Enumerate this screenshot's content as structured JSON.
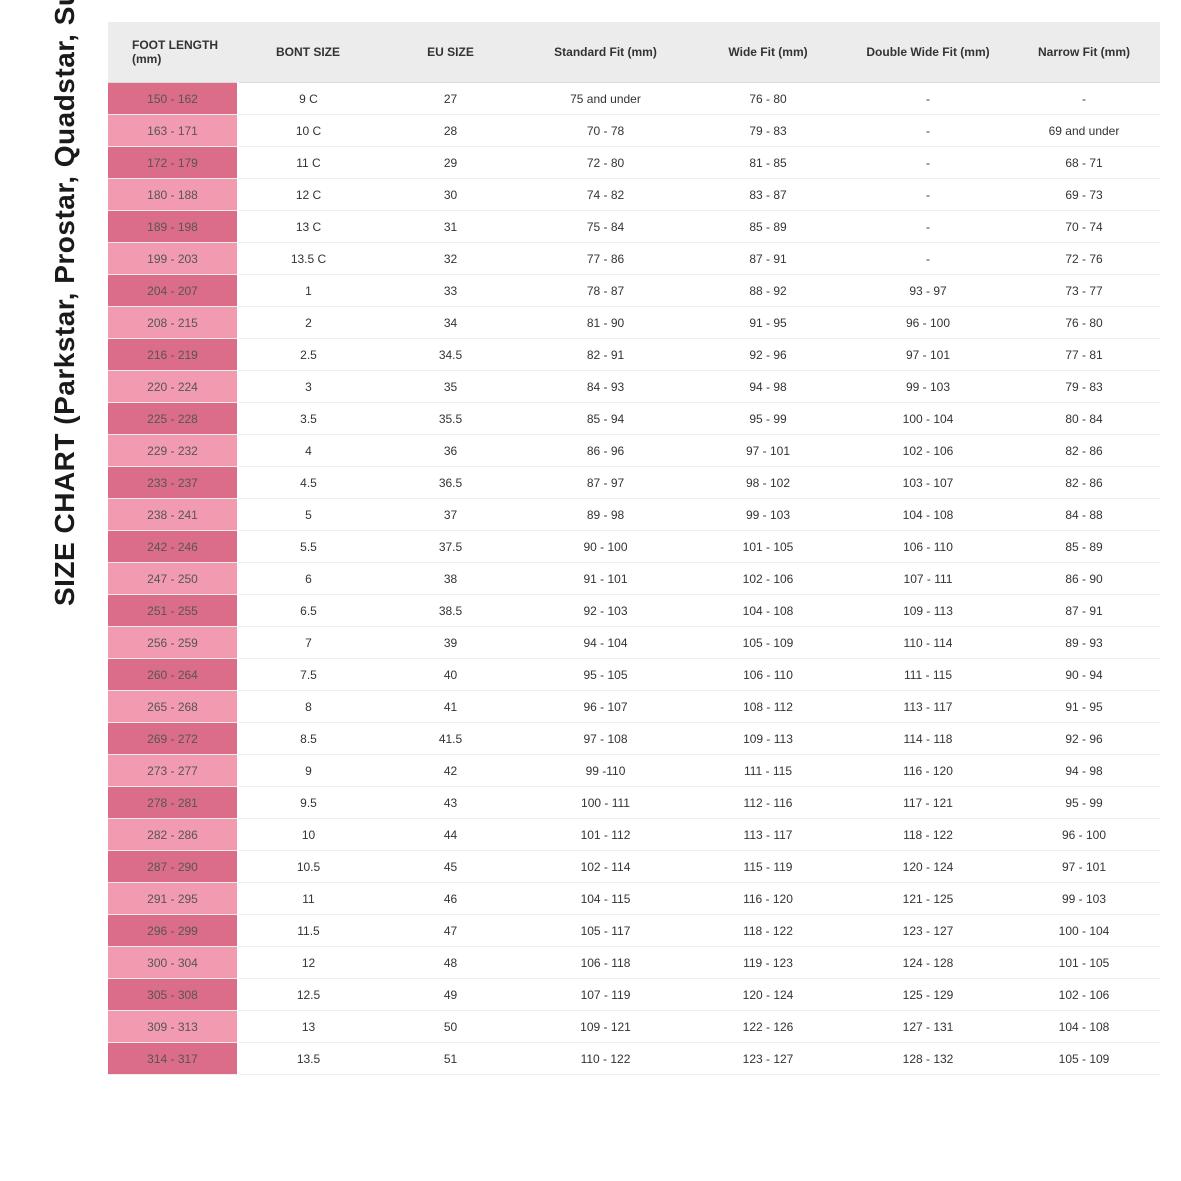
{
  "title": "SIZE CHART (Parkstar, Prostar, Quadstar, Super B)",
  "table": {
    "header_bg": "#ececec",
    "colors": {
      "dark_pink": "#dc6d88",
      "light_pink": "#f29aaf",
      "border": "#eeeeee",
      "text": "#333333"
    },
    "columns": [
      "FOOT LENGTH (mm)",
      "BONT SIZE",
      "EU SIZE",
      "Standard Fit (mm)",
      "Wide Fit (mm)",
      "Double Wide Fit (mm)",
      "Narrow Fit (mm)"
    ],
    "rows": [
      [
        "150 - 162",
        "9 C",
        "27",
        "75 and under",
        "76 - 80",
        "-",
        "-"
      ],
      [
        "163 - 171",
        "10 C",
        "28",
        "70 - 78",
        "79 - 83",
        "-",
        "69 and under"
      ],
      [
        "172 - 179",
        "11 C",
        "29",
        "72 - 80",
        "81 - 85",
        "-",
        "68 - 71"
      ],
      [
        "180 - 188",
        "12 C",
        "30",
        "74 - 82",
        "83 - 87",
        "-",
        "69 - 73"
      ],
      [
        "189 - 198",
        "13 C",
        "31",
        "75 - 84",
        "85 - 89",
        "-",
        "70 - 74"
      ],
      [
        "199 - 203",
        "13.5 C",
        "32",
        "77 - 86",
        "87 - 91",
        "-",
        "72 - 76"
      ],
      [
        "204 - 207",
        "1",
        "33",
        "78 - 87",
        "88 - 92",
        "93 - 97",
        "73 - 77"
      ],
      [
        "208 - 215",
        "2",
        "34",
        "81 - 90",
        "91 - 95",
        "96 - 100",
        "76 - 80"
      ],
      [
        "216 - 219",
        "2.5",
        "34.5",
        "82 - 91",
        "92 - 96",
        "97 - 101",
        "77 - 81"
      ],
      [
        "220 - 224",
        "3",
        "35",
        "84 - 93",
        "94 - 98",
        "99 - 103",
        "79 - 83"
      ],
      [
        "225 - 228",
        "3.5",
        "35.5",
        "85 - 94",
        "95 - 99",
        "100 - 104",
        "80 - 84"
      ],
      [
        "229 - 232",
        "4",
        "36",
        "86 - 96",
        "97 - 101",
        "102 - 106",
        "82 - 86"
      ],
      [
        "233 - 237",
        "4.5",
        "36.5",
        "87 - 97",
        "98 - 102",
        "103 - 107",
        "82 - 86"
      ],
      [
        "238 - 241",
        "5",
        "37",
        "89 - 98",
        "99 - 103",
        "104 - 108",
        "84 - 88"
      ],
      [
        "242 - 246",
        "5.5",
        "37.5",
        "90 - 100",
        "101 - 105",
        "106 - 110",
        "85 - 89"
      ],
      [
        "247 - 250",
        "6",
        "38",
        "91 - 101",
        "102 - 106",
        "107 - 111",
        "86 - 90"
      ],
      [
        "251 - 255",
        "6.5",
        "38.5",
        "92 - 103",
        "104 - 108",
        "109 - 113",
        "87 - 91"
      ],
      [
        "256 - 259",
        "7",
        "39",
        "94 - 104",
        "105 - 109",
        "110 - 114",
        "89 - 93"
      ],
      [
        "260 - 264",
        "7.5",
        "40",
        "95 - 105",
        "106 - 110",
        "111 - 115",
        "90 - 94"
      ],
      [
        "265 - 268",
        "8",
        "41",
        "96 - 107",
        "108 - 112",
        "113 - 117",
        "91 - 95"
      ],
      [
        "269 - 272",
        "8.5",
        "41.5",
        "97 - 108",
        "109 - 113",
        "114 - 118",
        "92 - 96"
      ],
      [
        "273 - 277",
        "9",
        "42",
        "99 -110",
        "111 - 115",
        "116 - 120",
        "94 - 98"
      ],
      [
        "278 - 281",
        "9.5",
        "43",
        "100 - 111",
        "112 - 116",
        "117 - 121",
        "95 - 99"
      ],
      [
        "282 - 286",
        "10",
        "44",
        "101 - 112",
        "113 - 117",
        "118 - 122",
        "96 - 100"
      ],
      [
        "287 - 290",
        "10.5",
        "45",
        "102 - 114",
        "115 - 119",
        "120 - 124",
        "97 - 101"
      ],
      [
        "291 - 295",
        "11",
        "46",
        "104 - 115",
        "116 - 120",
        "121 - 125",
        "99 - 103"
      ],
      [
        "296 - 299",
        "11.5",
        "47",
        "105 - 117",
        "118 - 122",
        "123 - 127",
        "100 - 104"
      ],
      [
        "300 - 304",
        "12",
        "48",
        "106 - 118",
        "119 - 123",
        "124 - 128",
        "101 - 105"
      ],
      [
        "305 - 308",
        "12.5",
        "49",
        "107 - 119",
        "120 - 124",
        "125 - 129",
        "102 - 106"
      ],
      [
        "309 - 313",
        "13",
        "50",
        "109 - 121",
        "122 - 126",
        "127 - 131",
        "104 - 108"
      ],
      [
        "314 - 317",
        "13.5",
        "51",
        "110 - 122",
        "123 - 127",
        "128 - 132",
        "105 - 109"
      ]
    ]
  }
}
